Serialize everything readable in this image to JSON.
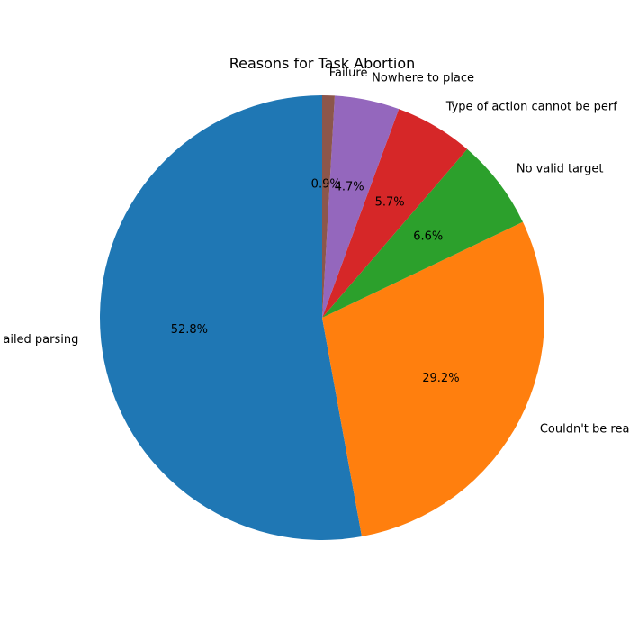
{
  "chart_data": {
    "type": "pie",
    "title": "Reasons for Task Abortion",
    "start_angle_deg": 90,
    "direction": "counterclockwise",
    "slices": [
      {
        "label": "Failed parsing",
        "display_label": "ailed parsing",
        "value": 52.8,
        "pct_label": "52.8%",
        "color": "#1f77b4"
      },
      {
        "label": "Couldn't be reached",
        "display_label": "Couldn't be rea",
        "value": 29.2,
        "pct_label": "29.2%",
        "color": "#ff7f0e"
      },
      {
        "label": "No valid target",
        "display_label": "No valid target",
        "value": 6.6,
        "pct_label": "6.6%",
        "color": "#2ca02c"
      },
      {
        "label": "Type of action cannot be performed",
        "display_label": "Type of action cannot be perf",
        "value": 5.7,
        "pct_label": "5.7%",
        "color": "#d62728"
      },
      {
        "label": "Nowhere to place",
        "display_label": "Nowhere to place",
        "value": 4.7,
        "pct_label": "4.7%",
        "color": "#9467bd"
      },
      {
        "label": "Failure",
        "display_label": "Failure",
        "value": 0.9,
        "pct_label": "0.9%",
        "color": "#8c564b"
      }
    ]
  }
}
